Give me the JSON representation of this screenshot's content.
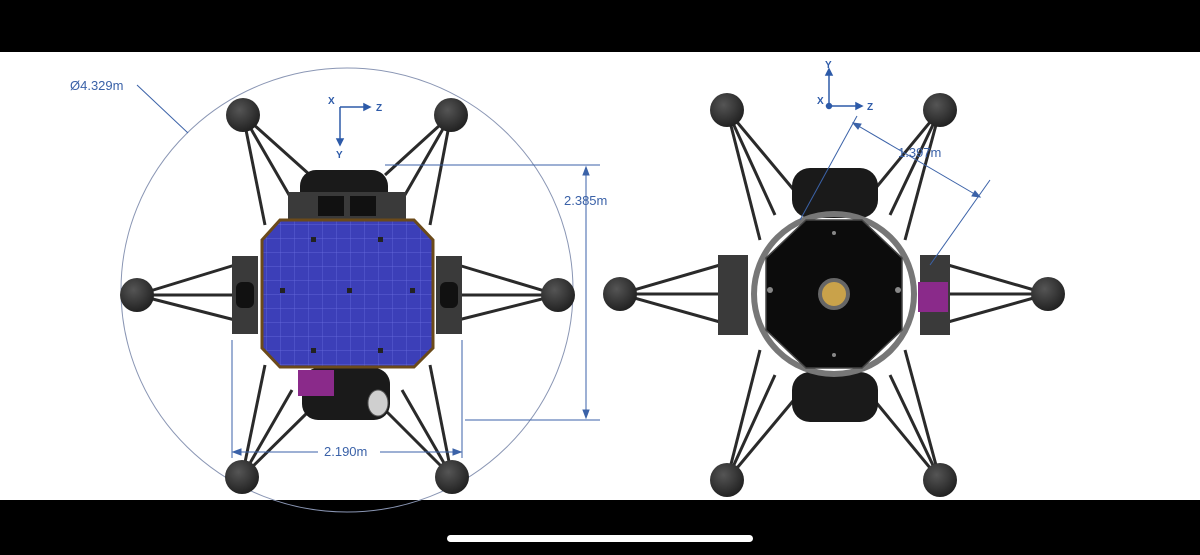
{
  "left_view": {
    "diameter_label": "Ø4.329m",
    "height_label": "2.385m",
    "width_label": "2.190m",
    "axis_x": "X",
    "axis_y": "Y",
    "axis_z": "Z"
  },
  "right_view": {
    "distance_label": "1.397m",
    "axis_x": "X",
    "axis_y": "Y",
    "axis_z": "Z"
  },
  "colors": {
    "dimension_line": "#3b62a8",
    "axis": "#2d5aa8",
    "solar_panel": "#3c3fb8",
    "strut": "#2a2a2a",
    "foot_pad": "#2c2c2c",
    "bezel": "#000000"
  }
}
